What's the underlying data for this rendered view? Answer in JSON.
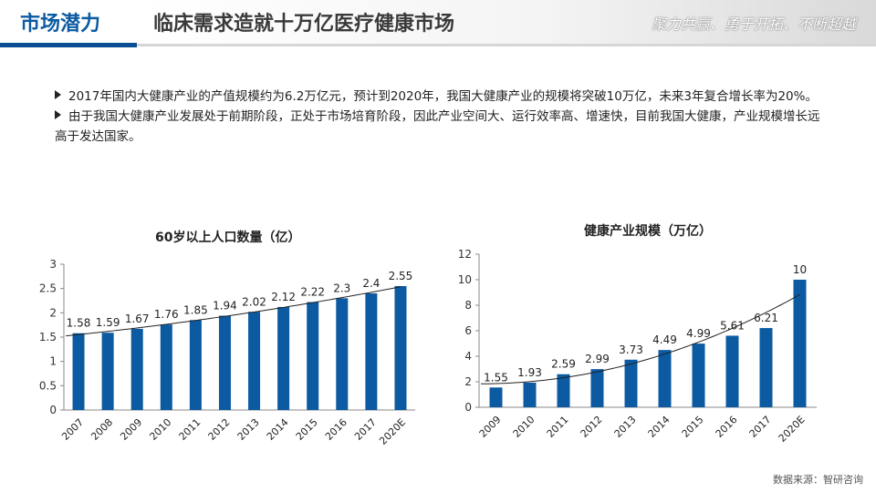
{
  "header": {
    "tab_label": "市场潜力",
    "title": "临床需求造就十万亿医疗健康市场",
    "slogan": "聚力共赢、勇于开拓、不断超越"
  },
  "bullets": [
    "2017年国内大健康产业的产值规模约为6.2万亿元，预计到2020年，我国大健康产业的规模将突破10万亿，未来3年复合增长率为20%。",
    "由于我国大健康产业发展处于前期阶段，正处于市场培育阶段，因此产业空间大、运行效率高、增速快，目前我国大健康，产业规模增长远高于发达国家。"
  ],
  "source": "数据来源：智研咨询",
  "colors": {
    "bar": "#0b5aa2",
    "accent": "#0b4e93"
  },
  "chart_data": [
    {
      "type": "bar",
      "title": "60岁以上人口数量（亿）",
      "categories": [
        "2007",
        "2008",
        "2009",
        "2010",
        "2011",
        "2012",
        "2013",
        "2014",
        "2015",
        "2016",
        "2017",
        "2020E"
      ],
      "values": [
        1.58,
        1.59,
        1.67,
        1.76,
        1.85,
        1.94,
        2.02,
        2.12,
        2.22,
        2.3,
        2.4,
        2.55
      ],
      "ylim": [
        0,
        3
      ],
      "yticks": [
        "0",
        "0.5",
        "1",
        "1.5",
        "2",
        "2.5",
        "3"
      ],
      "trendline": true,
      "grid": false
    },
    {
      "type": "bar",
      "title": "健康产业规模（万亿）",
      "categories": [
        "2009",
        "2010",
        "2011",
        "2012",
        "2013",
        "2014",
        "2015",
        "2016",
        "2017",
        "2020E"
      ],
      "values": [
        1.55,
        1.93,
        2.59,
        2.99,
        3.73,
        4.49,
        4.99,
        5.61,
        6.21,
        10
      ],
      "ylim": [
        0,
        12
      ],
      "yticks": [
        "0",
        "2",
        "4",
        "6",
        "8",
        "10",
        "12"
      ],
      "trendline": true,
      "grid": false
    }
  ]
}
